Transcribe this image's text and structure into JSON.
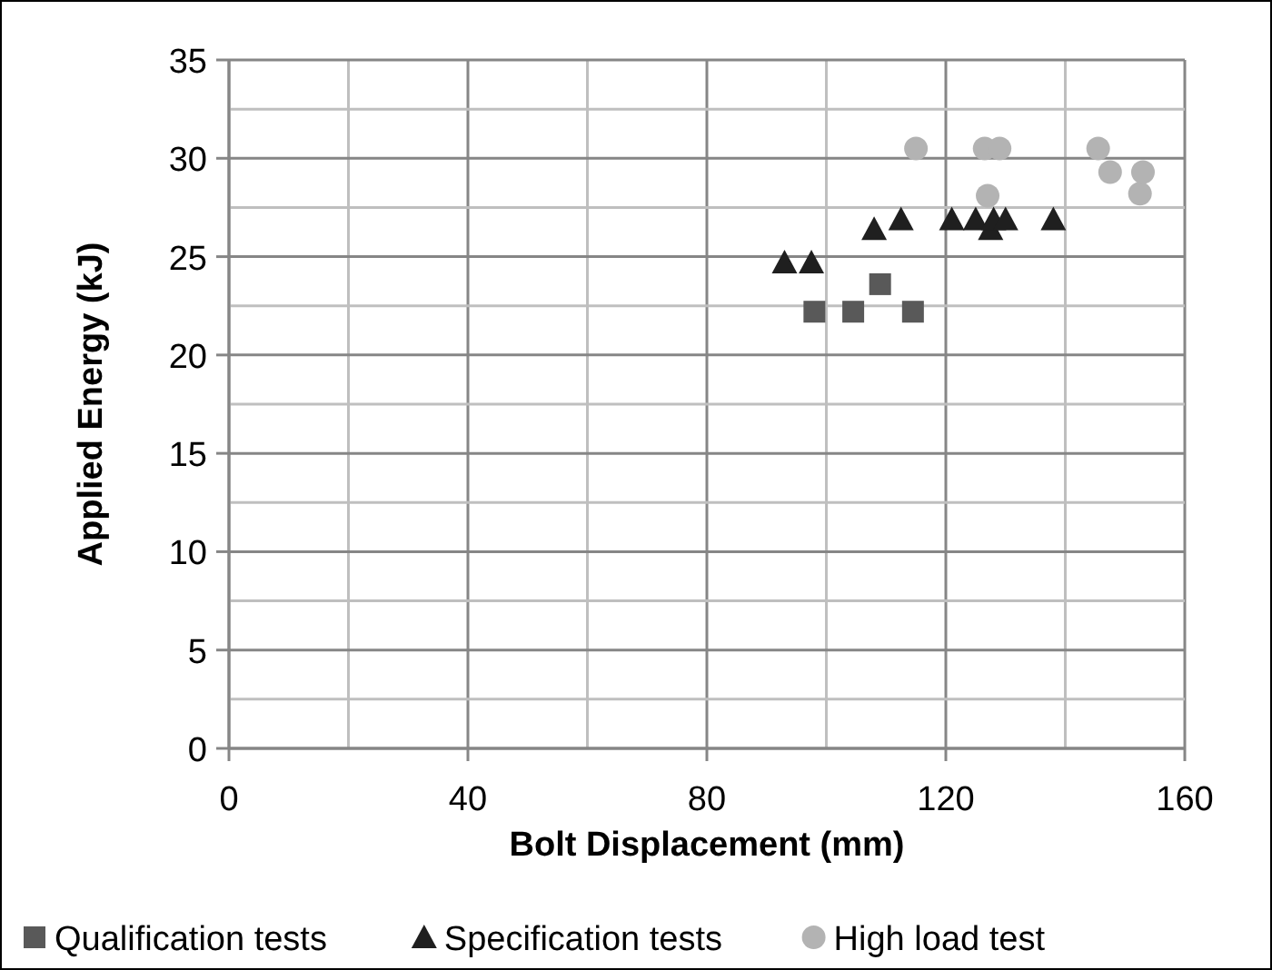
{
  "chart_data": {
    "type": "scatter",
    "xlabel": "Bolt Displacement (mm)",
    "ylabel": "Applied Energy (kJ)",
    "xlim": [
      0,
      160
    ],
    "ylim": [
      0,
      35
    ],
    "xticks": [
      0,
      {
        "value": 20,
        "label": null
      },
      40,
      {
        "value": 60,
        "label": null
      },
      80,
      {
        "value": 100,
        "label": null
      },
      120,
      {
        "value": 140,
        "label": null
      },
      160
    ],
    "yticks": [
      0,
      {
        "value": 2.5,
        "label": null
      },
      5,
      {
        "value": 7.5,
        "label": null
      },
      10,
      {
        "value": 12.5,
        "label": null
      },
      15,
      {
        "value": 17.5,
        "label": null
      },
      20,
      {
        "value": 22.5,
        "label": null
      },
      25,
      {
        "value": 27.5,
        "label": null
      },
      30,
      {
        "value": 32.5,
        "label": null
      },
      35
    ],
    "grid": true,
    "legend": "bottom",
    "series": [
      {
        "name": "Qualification tests",
        "color": "#595959",
        "marker": "square",
        "x": [
          98,
          104.5,
          109,
          114.5
        ],
        "values": [
          22.2,
          22.2,
          23.6,
          22.2
        ]
      },
      {
        "name": "Specification tests",
        "color": "#1f1f1f",
        "marker": "triangle",
        "x": [
          93,
          97.5,
          108,
          112.5,
          121,
          125,
          127.5,
          128,
          130,
          138
        ],
        "values": [
          24.7,
          24.7,
          26.4,
          26.9,
          26.9,
          26.9,
          26.4,
          26.9,
          26.9,
          26.9
        ]
      },
      {
        "name": "High load test",
        "color": "#b3b3b3",
        "marker": "circle",
        "x": [
          115,
          126.5,
          127,
          129,
          145.5,
          147.5,
          152.5,
          153
        ],
        "values": [
          30.5,
          30.5,
          28.1,
          30.5,
          30.5,
          29.3,
          28.2,
          29.3
        ]
      }
    ]
  }
}
